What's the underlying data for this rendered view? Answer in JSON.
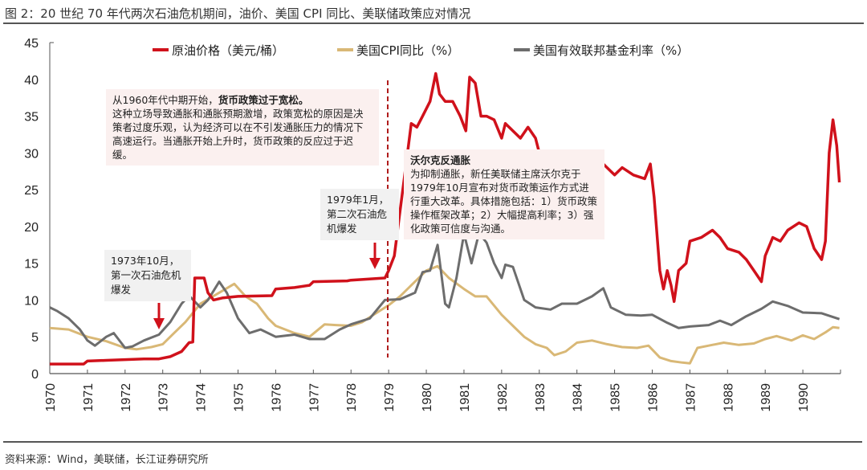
{
  "title": "图 2：20 世纪 70 年代两次石油危机期间，油价、美国 CPI 同比、美联储政策应对情况",
  "source": "资料来源：Wind，美联储，长江证券研究所",
  "annotations": {
    "loose_policy": {
      "lead": "从1960年代中期开始，",
      "bold": "货币政策过于宽松。",
      "body": "这种立场导致通胀和通胀预期激增，政策宽松的原因是决策者过度乐观，认为经济可以在不引发通胀压力的情况下高速运行。当通胀开始上升时，货币政策的反应过于迟缓。"
    },
    "volcker": {
      "bold": "沃尔克反通胀",
      "body": "为抑制通胀，新任美联储主席沃尔克于1979年10月宣布对货币政策运作方式进行重大改革。具体措施包括：1）货币政策操作框架改革；2）大幅提高利率；3）强化政策可信度与沟通。"
    },
    "crisis1": "1973年10月，第一次石油危机爆发",
    "crisis2": "1979年1月，第二次石油危机爆发"
  },
  "chart_data": {
    "type": "line",
    "title": "",
    "xlabel": "",
    "ylabel": "",
    "xlim": [
      1970,
      1991
    ],
    "ylim": [
      0,
      45
    ],
    "yticks": [
      0,
      5,
      10,
      15,
      20,
      25,
      30,
      35,
      40,
      45
    ],
    "xticks": [
      "1970",
      "1971",
      "1972",
      "1973",
      "1974",
      "1975",
      "1976",
      "1977",
      "1978",
      "1979",
      "1980",
      "1981",
      "1982",
      "1983",
      "1984",
      "1985",
      "1986",
      "1987",
      "1988",
      "1989",
      "1990"
    ],
    "grid": false,
    "legend": "top",
    "vertical_marker": 1979,
    "series": [
      {
        "name": "原油价格（美元/桶）",
        "color": "#d0111b",
        "x": [
          1970,
          1970.9,
          1971.0,
          1971.5,
          1972,
          1972.5,
          1972.9,
          1973.2,
          1973.5,
          1973.7,
          1973.8,
          1973.85,
          1974.1,
          1974.2,
          1974.35,
          1974.6,
          1975,
          1975.9,
          1976.0,
          1976.5,
          1976.9,
          1977.0,
          1977.9,
          1978.0,
          1978.9,
          1979.0,
          1979.15,
          1979.3,
          1979.45,
          1979.6,
          1979.75,
          1979.9,
          1980.1,
          1980.25,
          1980.35,
          1980.5,
          1980.7,
          1980.9,
          1981.05,
          1981.15,
          1981.3,
          1981.45,
          1981.6,
          1981.8,
          1982.0,
          1982.1,
          1982.3,
          1982.5,
          1982.7,
          1982.9,
          1983.0,
          1983.2,
          1983.5,
          1983.8,
          1984.2,
          1984.6,
          1985.0,
          1985.2,
          1985.5,
          1985.8,
          1985.95,
          1986.05,
          1986.2,
          1986.3,
          1986.4,
          1986.5,
          1986.58,
          1986.7,
          1986.9,
          1987.0,
          1987.3,
          1987.6,
          1987.8,
          1988.0,
          1988.3,
          1988.5,
          1988.7,
          1988.9,
          1989.0,
          1989.2,
          1989.4,
          1989.6,
          1989.9,
          1990.1,
          1990.3,
          1990.5,
          1990.6,
          1990.7,
          1990.8,
          1990.9,
          1990.97
        ],
        "y": [
          1.3,
          1.3,
          1.7,
          1.8,
          1.9,
          2.0,
          2.0,
          2.3,
          3,
          4.2,
          4.3,
          13,
          13,
          11,
          10,
          10.3,
          10.5,
          10.6,
          11.5,
          11.7,
          12,
          12.5,
          12.6,
          12.7,
          13,
          14,
          16,
          22,
          28,
          34,
          33.5,
          35,
          37,
          40.8,
          38,
          37,
          37,
          35,
          33,
          40.3,
          39.5,
          35,
          35,
          34.5,
          32,
          34,
          33,
          32,
          33.5,
          32,
          30,
          28.5,
          30,
          29.5,
          29.5,
          29,
          27,
          28,
          27,
          26.5,
          28.5,
          24,
          14,
          11.5,
          14,
          12,
          9.8,
          14,
          15,
          18,
          18.5,
          19.5,
          18.5,
          17,
          16.5,
          15.5,
          14,
          12.5,
          16,
          18.5,
          18,
          19.5,
          20.5,
          20,
          17,
          15.5,
          18,
          30,
          34.5,
          31,
          26
        ]
      },
      {
        "name": "美国CPI同比（%）",
        "color": "#d9b876",
        "x": [
          1970,
          1970.5,
          1971,
          1971.5,
          1972,
          1972.3,
          1972.7,
          1973,
          1973.3,
          1973.6,
          1974,
          1974.5,
          1974.9,
          1975.2,
          1975.5,
          1975.8,
          1976,
          1976.5,
          1976.9,
          1977.3,
          1977.6,
          1978,
          1978.3,
          1978.6,
          1979,
          1979.3,
          1979.6,
          1980,
          1980.3,
          1980.6,
          1981,
          1981.3,
          1981.6,
          1982,
          1982.3,
          1982.6,
          1982.9,
          1983.2,
          1983.4,
          1983.7,
          1984,
          1984.4,
          1984.8,
          1985.2,
          1985.6,
          1985.9,
          1986.2,
          1986.5,
          1986.8,
          1987,
          1987.2,
          1987.5,
          1987.9,
          1988.3,
          1988.7,
          1989,
          1989.3,
          1989.7,
          1990,
          1990.3,
          1990.6,
          1990.8,
          1990.97
        ],
        "y": [
          6.2,
          6,
          5,
          4.4,
          3.5,
          3.3,
          3.6,
          4,
          5.5,
          7,
          9.5,
          11,
          12.2,
          10.5,
          9.5,
          7.5,
          6.5,
          5.5,
          5,
          6.7,
          6.6,
          6.5,
          7,
          8,
          9.3,
          10.5,
          12,
          14,
          14.6,
          13,
          11.5,
          10.5,
          10.5,
          8,
          6.5,
          5,
          4,
          3.5,
          2.5,
          3,
          4.2,
          4.5,
          4,
          3.6,
          3.5,
          3.8,
          2.2,
          1.7,
          1.5,
          1.4,
          3.5,
          3.8,
          4.2,
          3.9,
          4.1,
          4.7,
          5.1,
          4.5,
          5.2,
          4.7,
          5.6,
          6.3,
          6.2
        ]
      },
      {
        "name": "美国有效联邦基金利率（%）",
        "color": "#6d6d6d",
        "x": [
          1970,
          1970.2,
          1970.5,
          1970.8,
          1971,
          1971.2,
          1971.5,
          1971.7,
          1972,
          1972.2,
          1972.5,
          1972.9,
          1973.2,
          1973.5,
          1973.7,
          1974,
          1974.2,
          1974.5,
          1974.7,
          1975,
          1975.3,
          1975.6,
          1976,
          1976.5,
          1976.9,
          1977.3,
          1977.7,
          1978,
          1978.5,
          1978.9,
          1979.3,
          1979.7,
          1979.9,
          1980.1,
          1980.3,
          1980.5,
          1980.6,
          1980.8,
          1981,
          1981.2,
          1981.4,
          1981.6,
          1981.8,
          1982,
          1982.1,
          1982.3,
          1982.6,
          1982.9,
          1983.3,
          1983.6,
          1984,
          1984.4,
          1984.7,
          1984.9,
          1985.3,
          1985.7,
          1986,
          1986.4,
          1986.7,
          1987,
          1987.5,
          1987.8,
          1988.1,
          1988.5,
          1988.9,
          1989.2,
          1989.6,
          1990,
          1990.5,
          1990.97
        ],
        "y": [
          9,
          8.5,
          7.5,
          6,
          4.5,
          3.8,
          5,
          5.5,
          3.5,
          3.7,
          4.5,
          5.3,
          7,
          9.5,
          10.6,
          9,
          10,
          12.5,
          11,
          7.5,
          5.5,
          6,
          5,
          5.3,
          4.7,
          4.7,
          6,
          6.7,
          7.5,
          10,
          10.1,
          11,
          13.8,
          14,
          17.5,
          9.5,
          9,
          13,
          19,
          15,
          19.1,
          17.8,
          15,
          13,
          14.8,
          14.5,
          10,
          9,
          8.7,
          9.5,
          9.5,
          10.5,
          11.6,
          9,
          8,
          7.9,
          8,
          6.9,
          6.2,
          6.4,
          6.6,
          7.2,
          6.6,
          7.8,
          8.8,
          9.8,
          9.2,
          8.3,
          8.2,
          7.4
        ]
      }
    ]
  }
}
